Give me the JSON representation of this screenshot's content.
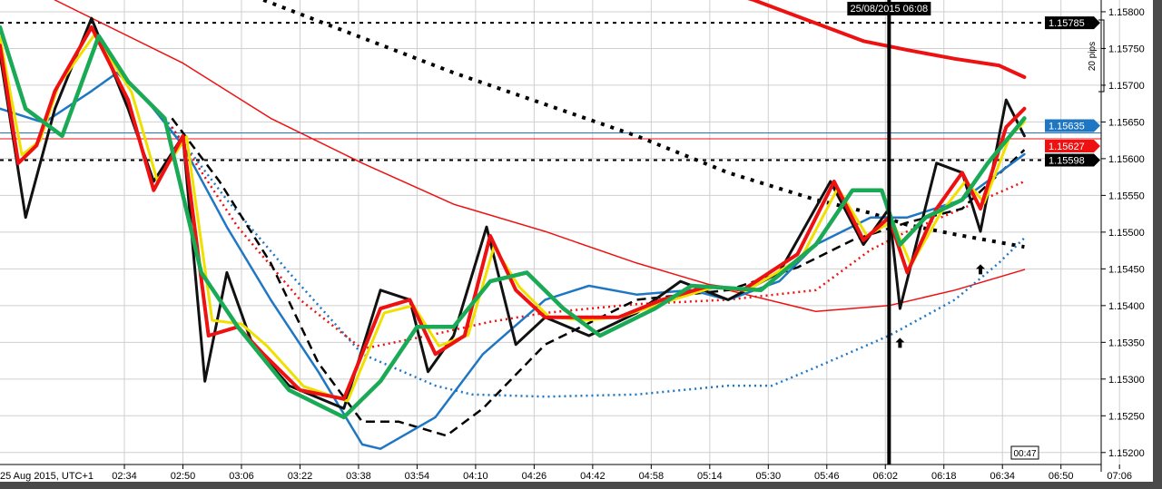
{
  "chart_data": {
    "type": "line",
    "title": "",
    "x_unit": "minutes since 02:00",
    "date_label": "25 Aug 2015, UTC+1",
    "x_ticks": [
      "02:34",
      "02:50",
      "03:06",
      "03:22",
      "03:38",
      "03:54",
      "04:10",
      "04:26",
      "04:42",
      "04:58",
      "05:14",
      "05:30",
      "05:46",
      "06:02",
      "06:18",
      "06:34",
      "06:50",
      "07:06"
    ],
    "y_ticks": [
      "1.15800",
      "1.15750",
      "1.15700",
      "1.15650",
      "1.15600",
      "1.15550",
      "1.15500",
      "1.15450",
      "1.15400",
      "1.15350",
      "1.15300",
      "1.15250",
      "1.15200"
    ],
    "ylim": [
      1.1519,
      1.15816
    ],
    "grid": true,
    "price_labels": [
      {
        "value": "1.15785",
        "color": "#000000",
        "style": "dashed"
      },
      {
        "value": "1.15635",
        "color": "#1f77c4",
        "style": "solid"
      },
      {
        "value": "1.15627",
        "color": "#ee1111",
        "style": "solid"
      },
      {
        "value": "1.15598",
        "color": "#000000",
        "style": "dashed"
      }
    ],
    "crosshair_label": "25/08/2015 06:08",
    "crosshair_minute": 245,
    "countdown": "00:47",
    "pips_ruler": "20 pips",
    "series": [
      {
        "name": "red-thick-slow",
        "color": "#ee1111",
        "width": 4,
        "dash": "",
        "points": [
          [
            190,
            1.1584
          ],
          [
            206,
            1.15816
          ],
          [
            236,
            1.1576
          ],
          [
            248,
            1.15748
          ],
          [
            261,
            1.15736
          ],
          [
            273,
            1.15727
          ],
          [
            280,
            1.15711
          ]
        ]
      },
      {
        "name": "red-thin",
        "color": "#ee1111",
        "width": 1.5,
        "dash": "",
        "points": [
          [
            15,
            1.15816
          ],
          [
            50,
            1.1573
          ],
          [
            74,
            1.15655
          ],
          [
            99,
            1.15594
          ],
          [
            124,
            1.15538
          ],
          [
            149,
            1.15501
          ],
          [
            174,
            1.15458
          ],
          [
            199,
            1.15421
          ],
          [
            223,
            1.15392
          ],
          [
            243,
            1.154
          ],
          [
            261,
            1.15421
          ],
          [
            280,
            1.15449
          ]
        ]
      },
      {
        "name": "black-dotted",
        "color": "#000000",
        "width": 4,
        "dash": "4 7",
        "points": [
          [
            72,
            1.15816
          ],
          [
            124,
            1.15717
          ],
          [
            174,
            1.15631
          ],
          [
            199,
            1.15581
          ],
          [
            223,
            1.15544
          ],
          [
            238,
            1.15526
          ],
          [
            248,
            1.1551
          ],
          [
            261,
            1.15497
          ],
          [
            280,
            1.1548
          ]
        ]
      },
      {
        "name": "blue-dotted",
        "color": "#1f77c4",
        "width": 2.5,
        "dash": "2 4",
        "points": [
          [
            45,
            1.15655
          ],
          [
            62,
            1.15544
          ],
          [
            79,
            1.15445
          ],
          [
            99,
            1.15334
          ],
          [
            119,
            1.15291
          ],
          [
            129,
            1.15279
          ],
          [
            149,
            1.15276
          ],
          [
            174,
            1.15279
          ],
          [
            199,
            1.15291
          ],
          [
            211,
            1.15291
          ],
          [
            223,
            1.15316
          ],
          [
            243,
            1.15359
          ],
          [
            261,
            1.15408
          ],
          [
            273,
            1.15458
          ],
          [
            280,
            1.15492
          ]
        ]
      },
      {
        "name": "red-dotted",
        "color": "#ee1111",
        "width": 2.5,
        "dash": "2 4",
        "points": [
          [
            47,
            1.15643
          ],
          [
            65,
            1.15507
          ],
          [
            82,
            1.15408
          ],
          [
            99,
            1.15341
          ],
          [
            117,
            1.15359
          ],
          [
            134,
            1.15378
          ],
          [
            149,
            1.1539
          ],
          [
            174,
            1.15402
          ],
          [
            199,
            1.15408
          ],
          [
            223,
            1.15421
          ],
          [
            238,
            1.15476
          ],
          [
            248,
            1.15501
          ],
          [
            263,
            1.15532
          ],
          [
            280,
            1.15569
          ]
        ]
      },
      {
        "name": "black-dashed",
        "color": "#000000",
        "width": 2.5,
        "dash": "10 6",
        "points": [
          [
            47,
            1.15655
          ],
          [
            60,
            1.15569
          ],
          [
            74,
            1.15458
          ],
          [
            87,
            1.15322
          ],
          [
            99,
            1.15242
          ],
          [
            109,
            1.15242
          ],
          [
            122,
            1.15223
          ],
          [
            132,
            1.1526
          ],
          [
            149,
            1.15347
          ],
          [
            174,
            1.15408
          ],
          [
            199,
            1.15421
          ],
          [
            218,
            1.15452
          ],
          [
            233,
            1.15489
          ],
          [
            248,
            1.15513
          ],
          [
            263,
            1.15532
          ],
          [
            280,
            1.15612
          ]
        ]
      },
      {
        "name": "blue-solid",
        "color": "#1f77c4",
        "width": 2.5,
        "dash": "",
        "points": [
          [
            0,
            1.15668
          ],
          [
            12,
            1.15649
          ],
          [
            25,
            1.15692
          ],
          [
            32,
            1.15717
          ],
          [
            40,
            1.1568
          ],
          [
            50,
            1.15618
          ],
          [
            62,
            1.15507
          ],
          [
            74,
            1.15408
          ],
          [
            87,
            1.1531
          ],
          [
            99,
            1.15211
          ],
          [
            104,
            1.15205
          ],
          [
            119,
            1.15248
          ],
          [
            132,
            1.15334
          ],
          [
            149,
            1.15408
          ],
          [
            161,
            1.15427
          ],
          [
            174,
            1.15415
          ],
          [
            189,
            1.15421
          ],
          [
            199,
            1.15408
          ],
          [
            213,
            1.15433
          ],
          [
            223,
            1.15483
          ],
          [
            238,
            1.1552
          ],
          [
            248,
            1.1552
          ],
          [
            263,
            1.15544
          ],
          [
            280,
            1.15606
          ]
        ]
      },
      {
        "name": "black-thick",
        "color": "#111111",
        "width": 3,
        "dash": "",
        "points": [
          [
            0,
            1.15742
          ],
          [
            7,
            1.1552
          ],
          [
            15,
            1.15668
          ],
          [
            25,
            1.15791
          ],
          [
            35,
            1.15668
          ],
          [
            42,
            1.15569
          ],
          [
            50,
            1.15631
          ],
          [
            56,
            1.15297
          ],
          [
            62,
            1.15445
          ],
          [
            69,
            1.15347
          ],
          [
            79,
            1.15291
          ],
          [
            94,
            1.1526
          ],
          [
            104,
            1.15421
          ],
          [
            112,
            1.15408
          ],
          [
            117,
            1.1531
          ],
          [
            124,
            1.15359
          ],
          [
            133,
            1.15507
          ],
          [
            141,
            1.15347
          ],
          [
            149,
            1.15384
          ],
          [
            161,
            1.15359
          ],
          [
            174,
            1.1539
          ],
          [
            186,
            1.15433
          ],
          [
            199,
            1.15408
          ],
          [
            213,
            1.15445
          ],
          [
            227,
            1.15569
          ],
          [
            236,
            1.15483
          ],
          [
            243,
            1.15532
          ],
          [
            246,
            1.15396
          ],
          [
            256,
            1.15594
          ],
          [
            263,
            1.15581
          ],
          [
            268,
            1.15501
          ],
          [
            275,
            1.1568
          ],
          [
            280,
            1.15631
          ]
        ]
      },
      {
        "name": "yellow",
        "color": "#f0e000",
        "width": 3,
        "dash": "",
        "points": [
          [
            0,
            1.15765
          ],
          [
            6,
            1.15605
          ],
          [
            11,
            1.15625
          ],
          [
            16,
            1.157
          ],
          [
            26,
            1.1577
          ],
          [
            36,
            1.1569
          ],
          [
            43,
            1.1557
          ],
          [
            51,
            1.1563
          ],
          [
            58,
            1.1538
          ],
          [
            66,
            1.15375
          ],
          [
            73,
            1.15345
          ],
          [
            83,
            1.1529
          ],
          [
            95,
            1.1527
          ],
          [
            105,
            1.1539
          ],
          [
            113,
            1.154
          ],
          [
            120,
            1.15345
          ],
          [
            128,
            1.1536
          ],
          [
            135,
            1.1548
          ],
          [
            142,
            1.15425
          ],
          [
            150,
            1.15385
          ],
          [
            160,
            1.1538
          ],
          [
            170,
            1.15385
          ],
          [
            182,
            1.15405
          ],
          [
            195,
            1.15425
          ],
          [
            204,
            1.1542
          ],
          [
            219,
            1.15465
          ],
          [
            229,
            1.1556
          ],
          [
            237,
            1.15495
          ],
          [
            244,
            1.15515
          ],
          [
            249,
            1.15455
          ],
          [
            257,
            1.15525
          ],
          [
            264,
            1.1557
          ],
          [
            269,
            1.1554
          ],
          [
            276,
            1.1563
          ],
          [
            280,
            1.1565
          ]
        ]
      },
      {
        "name": "red-thick-fast",
        "color": "#ee1111",
        "width": 4,
        "dash": "",
        "points": [
          [
            0,
            1.15754
          ],
          [
            5,
            1.15594
          ],
          [
            10,
            1.15618
          ],
          [
            15,
            1.15692
          ],
          [
            25,
            1.15779
          ],
          [
            35,
            1.1568
          ],
          [
            42,
            1.15557
          ],
          [
            50,
            1.15631
          ],
          [
            57,
            1.15359
          ],
          [
            65,
            1.15371
          ],
          [
            72,
            1.15334
          ],
          [
            82,
            1.15285
          ],
          [
            94,
            1.15273
          ],
          [
            104,
            1.15396
          ],
          [
            112,
            1.15408
          ],
          [
            119,
            1.15334
          ],
          [
            127,
            1.15359
          ],
          [
            134,
            1.15495
          ],
          [
            141,
            1.15421
          ],
          [
            149,
            1.15384
          ],
          [
            159,
            1.15384
          ],
          [
            169,
            1.15384
          ],
          [
            181,
            1.15408
          ],
          [
            194,
            1.15427
          ],
          [
            203,
            1.15421
          ],
          [
            218,
            1.1547
          ],
          [
            228,
            1.15569
          ],
          [
            236,
            1.15489
          ],
          [
            243,
            1.1552
          ],
          [
            248,
            1.15445
          ],
          [
            256,
            1.15532
          ],
          [
            263,
            1.15581
          ],
          [
            268,
            1.15532
          ],
          [
            275,
            1.15643
          ],
          [
            280,
            1.15668
          ]
        ]
      },
      {
        "name": "green-thick",
        "color": "#1aaa55",
        "width": 4.5,
        "dash": "",
        "points": [
          [
            0,
            1.15779
          ],
          [
            7,
            1.15668
          ],
          [
            17,
            1.15631
          ],
          [
            27,
            1.15767
          ],
          [
            35,
            1.15705
          ],
          [
            45,
            1.15655
          ],
          [
            55,
            1.15445
          ],
          [
            65,
            1.15371
          ],
          [
            79,
            1.15285
          ],
          [
            94,
            1.15248
          ],
          [
            104,
            1.15297
          ],
          [
            114,
            1.15371
          ],
          [
            124,
            1.15371
          ],
          [
            134,
            1.15433
          ],
          [
            144,
            1.15445
          ],
          [
            154,
            1.15396
          ],
          [
            164,
            1.15359
          ],
          [
            179,
            1.15396
          ],
          [
            189,
            1.15427
          ],
          [
            208,
            1.15421
          ],
          [
            223,
            1.15483
          ],
          [
            233,
            1.15557
          ],
          [
            241,
            1.15557
          ],
          [
            246,
            1.15483
          ],
          [
            253,
            1.1552
          ],
          [
            263,
            1.15544
          ],
          [
            270,
            1.15594
          ],
          [
            280,
            1.15655
          ]
        ]
      }
    ],
    "arrows": [
      [
        246,
        1.1535
      ],
      [
        268,
        1.1545
      ]
    ]
  }
}
